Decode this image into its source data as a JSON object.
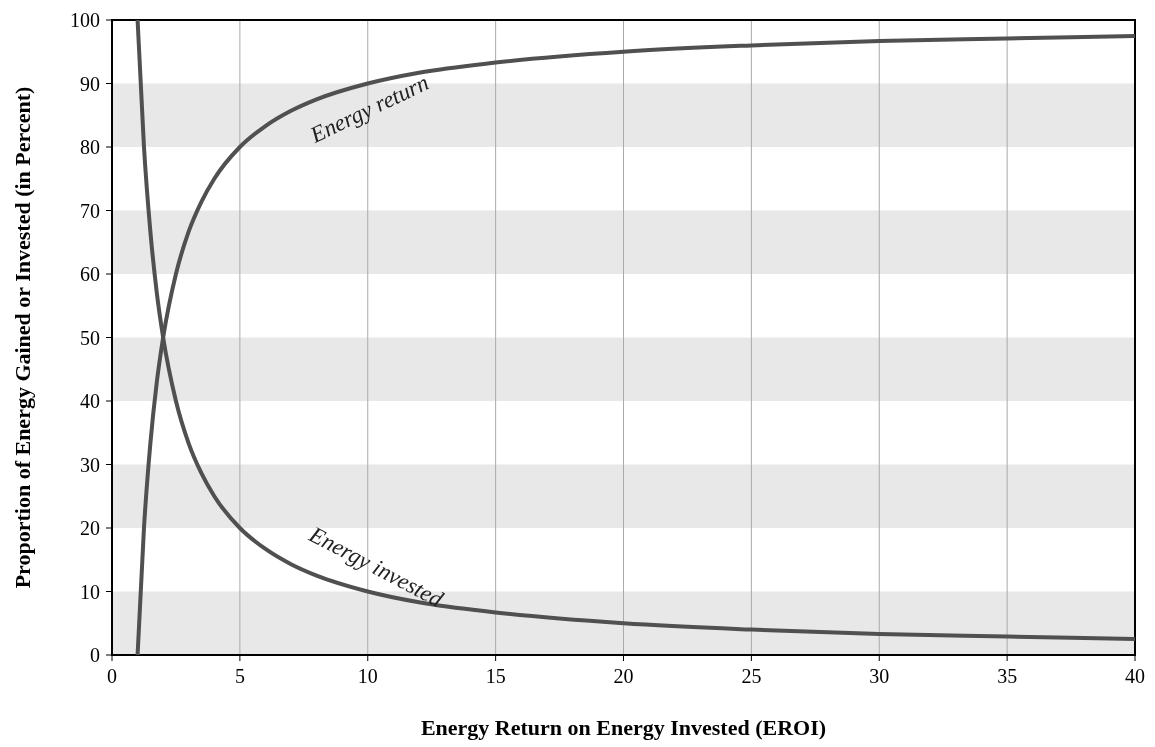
{
  "chart_data": {
    "type": "line",
    "xlabel": "Energy Return on Energy Invested (EROI)",
    "ylabel": "Proportion of Energy Gained or Invested (in Percent)",
    "xlim": [
      0,
      40
    ],
    "ylim": [
      0,
      100
    ],
    "xticks": [
      0,
      5,
      10,
      15,
      20,
      25,
      30,
      35,
      40
    ],
    "yticks": [
      0,
      10,
      20,
      30,
      40,
      50,
      60,
      70,
      80,
      90,
      100
    ],
    "grid": "x",
    "marker": "none",
    "line_style": "solid",
    "bands": [
      {
        "axis": "y",
        "from": 0,
        "to": 10,
        "color": "#e8e8e8"
      },
      {
        "axis": "y",
        "from": 20,
        "to": 30,
        "color": "#e8e8e8"
      },
      {
        "axis": "y",
        "from": 40,
        "to": 50,
        "color": "#e8e8e8"
      },
      {
        "axis": "y",
        "from": 60,
        "to": 70,
        "color": "#e8e8e8"
      },
      {
        "axis": "y",
        "from": 80,
        "to": 90,
        "color": "#e8e8e8"
      }
    ],
    "series": [
      {
        "name": "Energy return",
        "color": "#505050",
        "x": [
          1,
          1.25,
          1.5,
          1.75,
          2,
          2.5,
          3,
          3.5,
          4,
          5,
          6,
          7,
          8,
          10,
          12,
          15,
          20,
          25,
          30,
          35,
          40
        ],
        "values": [
          0,
          20,
          33.3,
          42.9,
          50,
          60,
          66.7,
          71.4,
          75,
          80,
          83.3,
          85.7,
          87.5,
          90,
          91.7,
          93.3,
          95,
          96,
          96.7,
          97.1,
          97.5
        ]
      },
      {
        "name": "Energy invested",
        "color": "#505050",
        "x": [
          1,
          1.25,
          1.5,
          1.75,
          2,
          2.5,
          3,
          3.5,
          4,
          5,
          6,
          7,
          8,
          10,
          12,
          15,
          20,
          25,
          30,
          35,
          40
        ],
        "values": [
          100,
          80,
          66.7,
          57.1,
          50,
          40,
          33.3,
          28.6,
          25,
          20,
          16.7,
          14.3,
          12.5,
          10,
          8.3,
          6.7,
          5,
          4,
          3.3,
          2.9,
          2.5
        ]
      }
    ]
  }
}
